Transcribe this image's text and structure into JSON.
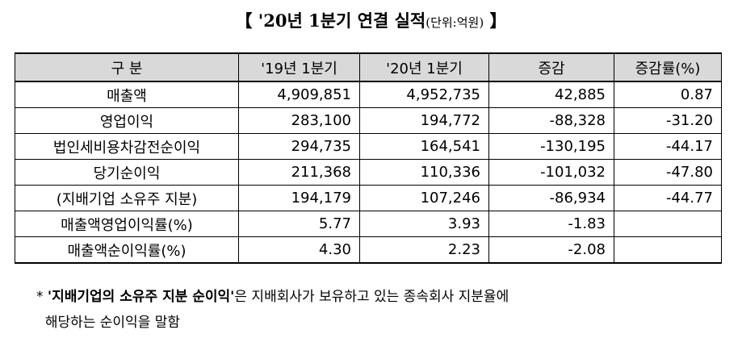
{
  "header": {
    "open": "【",
    "title": "'20년 1분기 연결 실적",
    "unit": "(단위:억원)",
    "close": "】"
  },
  "table": {
    "columns": [
      "구   분",
      "'19년 1분기",
      "'20년 1분기",
      "증감",
      "증감률(%)"
    ],
    "rows": [
      [
        "매출액",
        "4,909,851",
        "4,952,735",
        "42,885",
        "0.87"
      ],
      [
        "영업이익",
        "283,100",
        "194,772",
        "-88,328",
        "-31.20"
      ],
      [
        "법인세비용차감전순이익",
        "294,735",
        "164,541",
        "-130,195",
        "-44.17"
      ],
      [
        "당기순이익",
        "211,368",
        "110,336",
        "-101,032",
        "-47.80"
      ],
      [
        "(지배기업 소유주 지분)",
        "194,179",
        "107,246",
        "-86,934",
        "-44.77"
      ],
      [
        "매출액영업이익률(%)",
        "5.77",
        "3.93",
        "-1.83"
      ],
      [
        "매출액순이익률(%)",
        "4.30",
        "2.23",
        "-2.08"
      ]
    ]
  },
  "footnote": {
    "marker": "*",
    "emphasis": "'지배기업의 소유주 지분 순이익'",
    "line1": "은 지배회사가 보유하고 있는 종속회사 지분율에",
    "line2": "해당하는 순이익을 말함"
  }
}
